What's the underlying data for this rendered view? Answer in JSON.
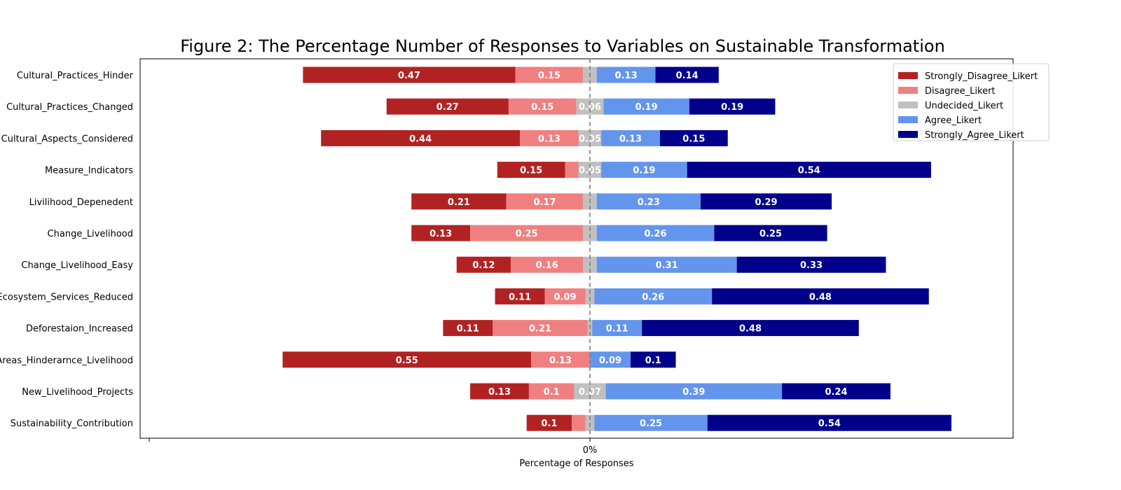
{
  "chart_data": {
    "type": "bar",
    "orientation": "horizontal",
    "stacked": "diverging",
    "title": "Figure 2: The Percentage Number of Responses to Variables on Sustainable Transformation",
    "xlabel": "Percentage of Responses",
    "ylabel": "",
    "x_ticks": [
      "0%"
    ],
    "grid": false,
    "legend_position": "top-right",
    "categories": [
      "Cultural_Practices_Hinder",
      "Cultural_Practices_Changed",
      "Cultural_Aspects_Considered",
      "Measure_Indicators",
      "Livilihood_Depenedent",
      "Change_Livelihood",
      "Change_Livelihood_Easy",
      "Ecosystem_Services_Reduced",
      "Deforestaion_Increased",
      "Protected_Areas_Hinderarnce_Livelihood",
      "New_Livelihood_Projects",
      "Sustainability_Contribution"
    ],
    "series": [
      {
        "name": "Strongly_Disagree_Likert",
        "color": "#b22222",
        "values": [
          0.47,
          0.27,
          0.44,
          0.15,
          0.21,
          0.13,
          0.12,
          0.11,
          0.11,
          0.55,
          0.13,
          0.1
        ]
      },
      {
        "name": "Disagree_Likert",
        "color": "#f08080",
        "values": [
          0.15,
          0.15,
          0.13,
          0.03,
          0.17,
          0.25,
          0.16,
          0.09,
          0.21,
          0.13,
          0.1,
          0.03
        ]
      },
      {
        "name": "Undecided_Likert",
        "color": "#c0c0c0",
        "values": [
          0.03,
          0.06,
          0.05,
          0.05,
          0.03,
          0.03,
          0.03,
          0.02,
          0.01,
          0.0,
          0.07,
          0.02
        ]
      },
      {
        "name": "Agree_Likert",
        "color": "#6495ed",
        "values": [
          0.13,
          0.19,
          0.13,
          0.19,
          0.23,
          0.26,
          0.31,
          0.26,
          0.11,
          0.09,
          0.39,
          0.25
        ]
      },
      {
        "name": "Strongly_Agree_Likert",
        "color": "#00008b",
        "values": [
          0.14,
          0.19,
          0.15,
          0.54,
          0.29,
          0.25,
          0.33,
          0.48,
          0.48,
          0.1,
          0.24,
          0.54
        ]
      }
    ],
    "bar_labels": [
      [
        "0.47",
        "0.15",
        "",
        "0.13",
        "0.14"
      ],
      [
        "0.27",
        "0.15",
        "0.06",
        "0.19",
        "0.19"
      ],
      [
        "0.44",
        "0.13",
        "0.05",
        "0.13",
        "0.15"
      ],
      [
        "0.15",
        "",
        "0.05",
        "0.19",
        "0.54"
      ],
      [
        "0.21",
        "0.17",
        "",
        "0.23",
        "0.29"
      ],
      [
        "0.13",
        "0.25",
        "",
        "0.26",
        "0.25"
      ],
      [
        "0.12",
        "0.16",
        "",
        "0.31",
        "0.33"
      ],
      [
        "0.11",
        "0.09",
        "",
        "0.26",
        "0.48"
      ],
      [
        "0.11",
        "0.21",
        "",
        "0.11",
        "0.48"
      ],
      [
        "0.55",
        "0.13",
        "",
        "0.09",
        "0.1"
      ],
      [
        "0.13",
        "0.1",
        "0.07",
        "0.39",
        "0.24"
      ],
      [
        "0.1",
        "",
        "",
        "0.25",
        "0.54"
      ]
    ]
  }
}
